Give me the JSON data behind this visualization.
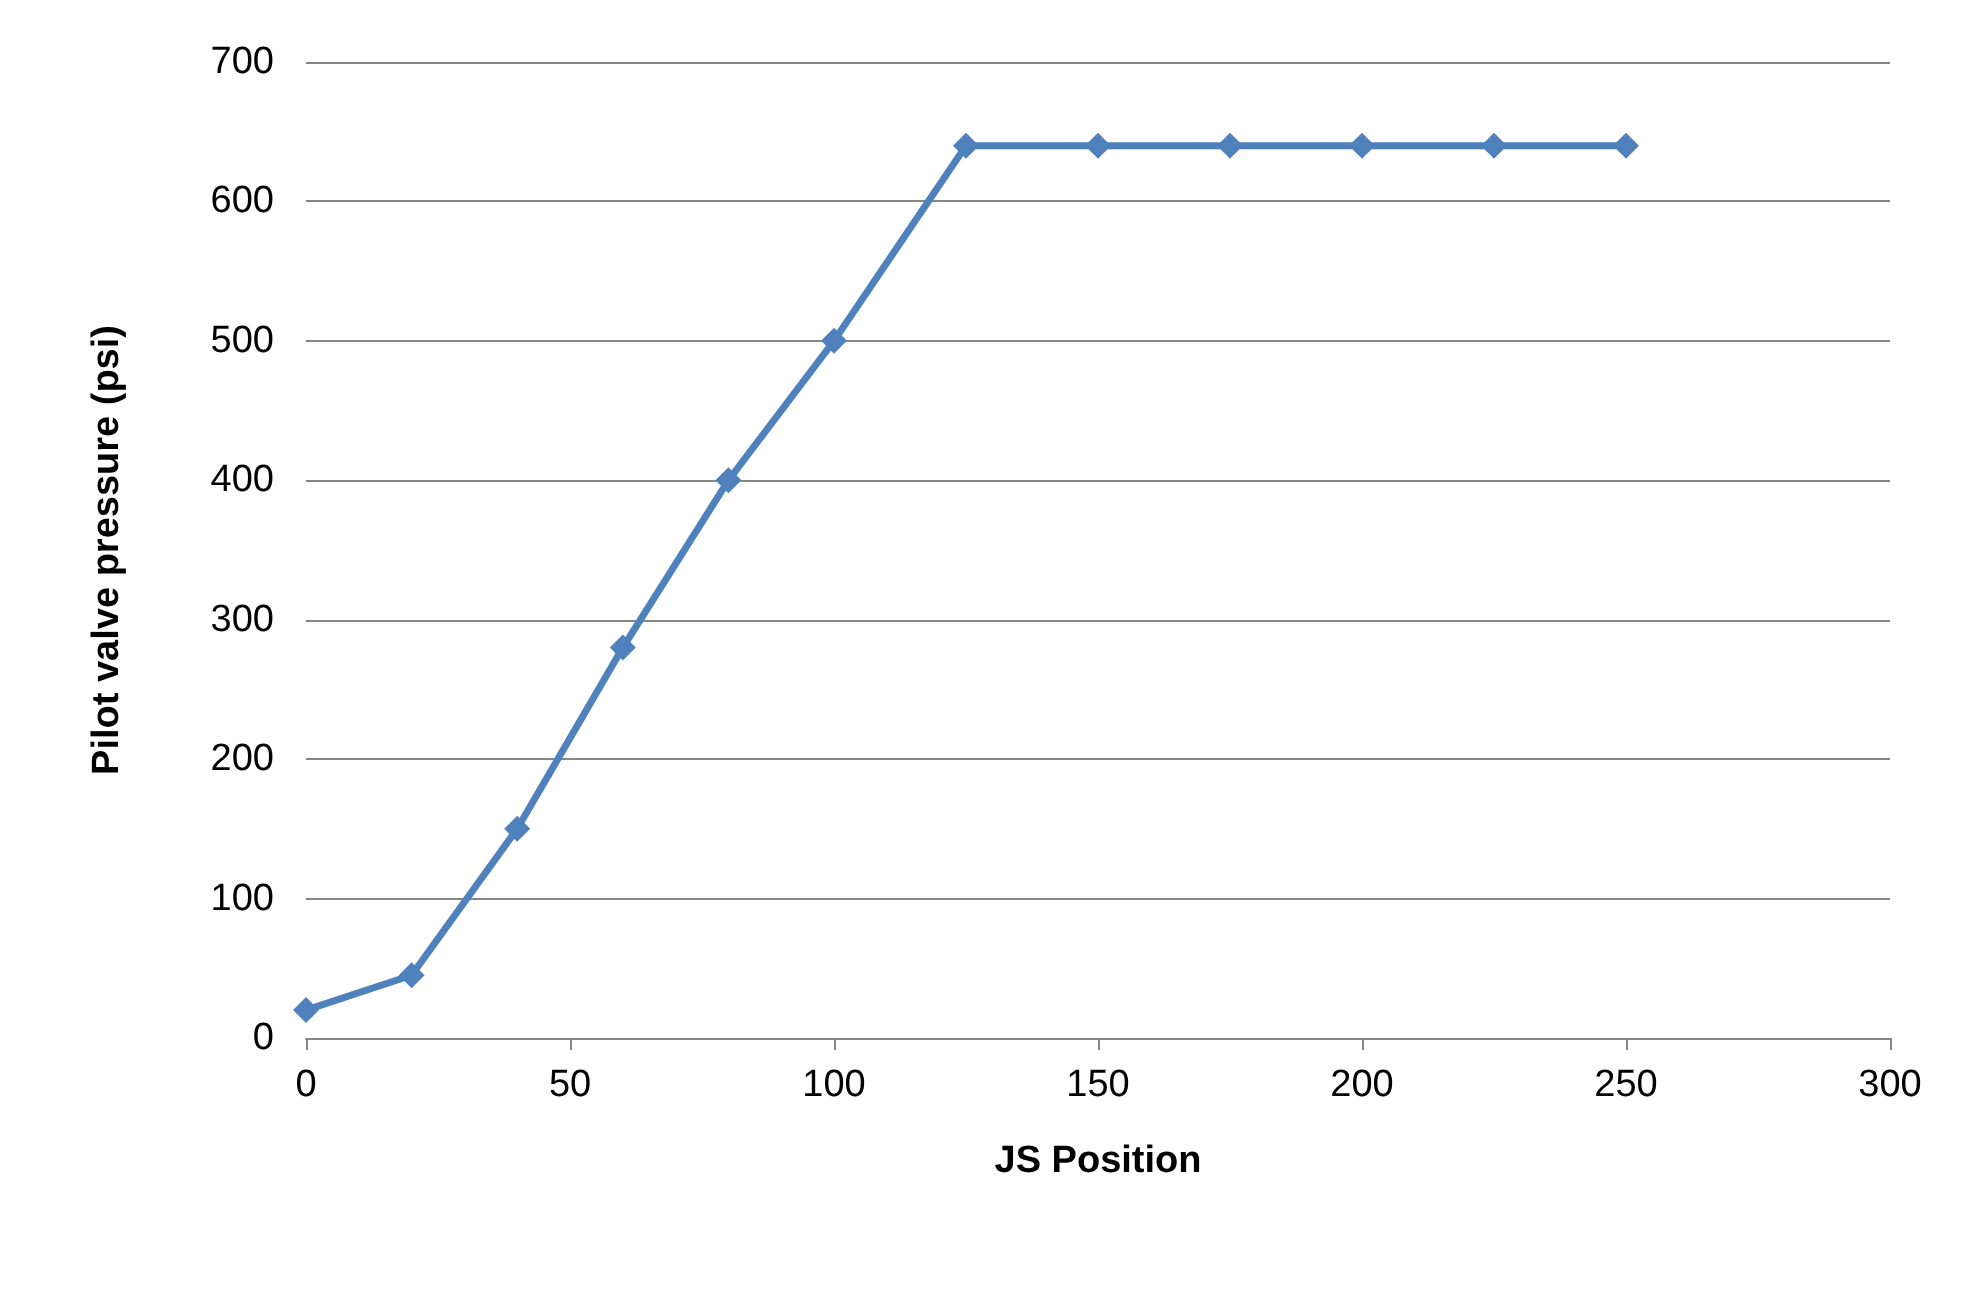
{
  "chart_data": {
    "type": "line",
    "xlabel": "JS Position",
    "ylabel": "Pilot valve pressure (psi)",
    "x": [
      0,
      20,
      40,
      60,
      80,
      100,
      125,
      150,
      175,
      200,
      225,
      250
    ],
    "series": [
      {
        "color": "#4f81bd",
        "values": [
          20,
          45,
          150,
          280,
          400,
          500,
          640,
          640,
          640,
          640,
          640,
          640
        ]
      }
    ],
    "xlim": [
      0,
      300
    ],
    "xticks": [
      0,
      50,
      100,
      150,
      200,
      250,
      300
    ],
    "ylim": [
      0,
      700
    ],
    "yticks": [
      0,
      100,
      200,
      300,
      400,
      500,
      600,
      700
    ],
    "grid": "y",
    "marker": "diamond",
    "line_style": "solid"
  }
}
